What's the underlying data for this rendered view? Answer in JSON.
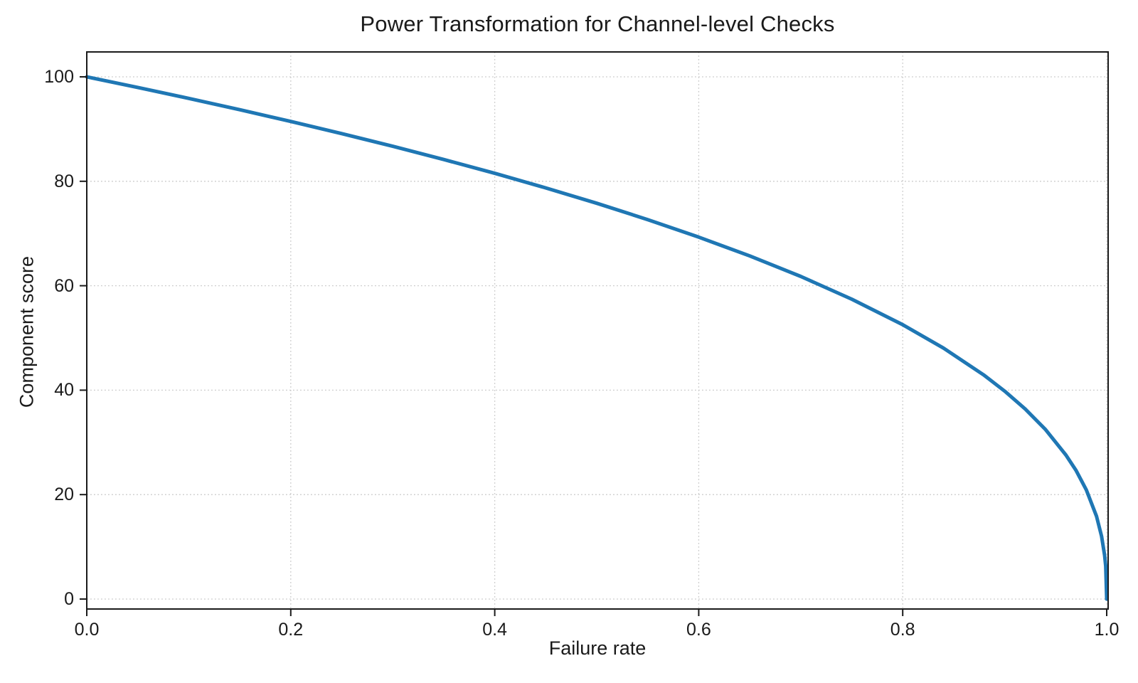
{
  "figure": {
    "background_color": "#ffffff"
  },
  "chart_data": {
    "type": "line",
    "title": "Power Transformation for Channel-level Checks",
    "xlabel": "Failure rate",
    "ylabel": "Component score",
    "xlim": [
      0.0,
      1.0
    ],
    "ylim": [
      0,
      100
    ],
    "grid": true,
    "grid_style": "dotted",
    "grid_color": "#c9c9c9",
    "legend": "none",
    "line_color": "#1f77b4",
    "line_width": 5,
    "axis_color": "#1a1a1a",
    "curve_formula": "score = 100 * (1 - failure_rate)^0.4",
    "x_ticks": [
      {
        "value": 0.0,
        "label": "0.0"
      },
      {
        "value": 0.2,
        "label": "0.2"
      },
      {
        "value": 0.4,
        "label": "0.4"
      },
      {
        "value": 0.6,
        "label": "0.6"
      },
      {
        "value": 0.8,
        "label": "0.8"
      },
      {
        "value": 1.0,
        "label": "1.0"
      }
    ],
    "y_ticks": [
      {
        "value": 0,
        "label": "0"
      },
      {
        "value": 20,
        "label": "20"
      },
      {
        "value": 40,
        "label": "40"
      },
      {
        "value": 60,
        "label": "60"
      },
      {
        "value": 80,
        "label": "80"
      },
      {
        "value": 100,
        "label": "100"
      }
    ],
    "points": [
      [
        0.0,
        100.0
      ],
      [
        0.05,
        97.97
      ],
      [
        0.1,
        95.87
      ],
      [
        0.15,
        93.71
      ],
      [
        0.2,
        91.46
      ],
      [
        0.25,
        89.13
      ],
      [
        0.3,
        86.7
      ],
      [
        0.35,
        84.17
      ],
      [
        0.4,
        81.52
      ],
      [
        0.45,
        78.73
      ],
      [
        0.5,
        75.79
      ],
      [
        0.55,
        72.66
      ],
      [
        0.6,
        69.31
      ],
      [
        0.65,
        65.71
      ],
      [
        0.7,
        61.78
      ],
      [
        0.75,
        57.43
      ],
      [
        0.8,
        52.53
      ],
      [
        0.84,
        48.05
      ],
      [
        0.88,
        42.83
      ],
      [
        0.9,
        39.81
      ],
      [
        0.92,
        36.41
      ],
      [
        0.94,
        32.45
      ],
      [
        0.96,
        27.59
      ],
      [
        0.97,
        24.6
      ],
      [
        0.98,
        20.91
      ],
      [
        0.99,
        15.85
      ],
      [
        0.995,
        12.01
      ],
      [
        0.998,
        8.33
      ],
      [
        0.999,
        6.31
      ],
      [
        1.0,
        0.0
      ]
    ]
  }
}
